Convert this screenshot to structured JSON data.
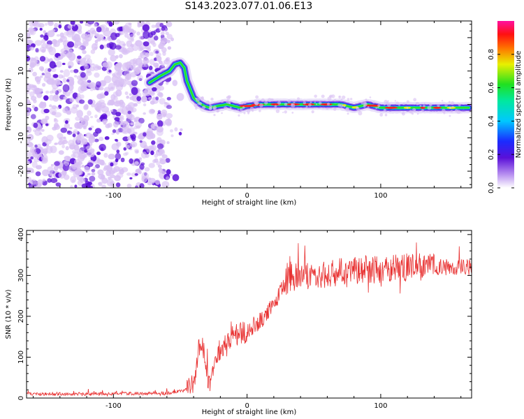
{
  "title": "S143.2023.077.01.06.E13",
  "colors": {
    "snr_line": "#e83030",
    "scatter_dark": "#5a10d8",
    "scatter_light": "#d8c0f4",
    "axis": "#000000"
  },
  "chart_data": [
    {
      "type": "heatmap",
      "xlabel": "Height of straight line (km)",
      "ylabel": "Frequency (Hz)",
      "xlim": [
        -165,
        168
      ],
      "ylim": [
        -25,
        25
      ],
      "xticks": [
        -100,
        0,
        100
      ],
      "yticks": [
        -20,
        -10,
        0,
        10,
        20
      ],
      "colorbar": {
        "label": "Normalized spectral amplitude",
        "range": [
          0,
          1
        ],
        "ticks": [
          "0.0",
          "0.2",
          "0.4",
          "0.6",
          "0.8"
        ],
        "tick_values": [
          0.0,
          0.2,
          0.4,
          0.6,
          0.8
        ],
        "colormap": "rainbow (white → purple → blue → cyan → green → yellow → red → magenta)"
      },
      "ridge": {
        "description": "narrow high-amplitude frequency ridge",
        "x": [
          -73,
          -65,
          -58,
          -54,
          -50,
          -47,
          -45,
          -43,
          -40,
          -36,
          -32,
          -28,
          -22,
          -15,
          -5,
          0,
          10,
          20,
          30,
          40,
          50,
          60,
          70,
          80,
          90,
          100,
          110,
          120,
          130,
          140,
          150,
          160,
          166
        ],
        "y": [
          6.5,
          8.5,
          10,
          12,
          12.5,
          11,
          7,
          5,
          2,
          0.5,
          -0.5,
          -1,
          -0.5,
          0,
          -1,
          -0.5,
          0,
          0,
          0,
          0,
          0,
          0,
          0,
          -1,
          0,
          -1,
          -1,
          -1,
          -1,
          -1,
          -1,
          -1,
          -1
        ]
      },
      "noise_region_x": [
        -165,
        -58
      ]
    },
    {
      "type": "line",
      "xlabel": "Height of straight line (km)",
      "ylabel": "SNR (10 * v/v)",
      "xlim": [
        -165,
        168
      ],
      "ylim": [
        0,
        410
      ],
      "xticks": [
        -100,
        0,
        100
      ],
      "yticks": [
        0,
        100,
        200,
        300,
        400
      ],
      "envelope": {
        "x": [
          -165,
          -120,
          -60,
          -45,
          -40,
          -38,
          -35,
          -33,
          -30,
          -28,
          -25,
          -22,
          -20,
          -15,
          -10,
          -5,
          0,
          5,
          10,
          15,
          20,
          25,
          30,
          40,
          60,
          80,
          100,
          120,
          140,
          168
        ],
        "y": [
          10,
          10,
          12,
          20,
          40,
          70,
          140,
          130,
          60,
          30,
          70,
          110,
          120,
          140,
          150,
          160,
          160,
          180,
          190,
          210,
          230,
          260,
          290,
          300,
          305,
          310,
          315,
          320,
          320,
          320
        ]
      }
    }
  ]
}
